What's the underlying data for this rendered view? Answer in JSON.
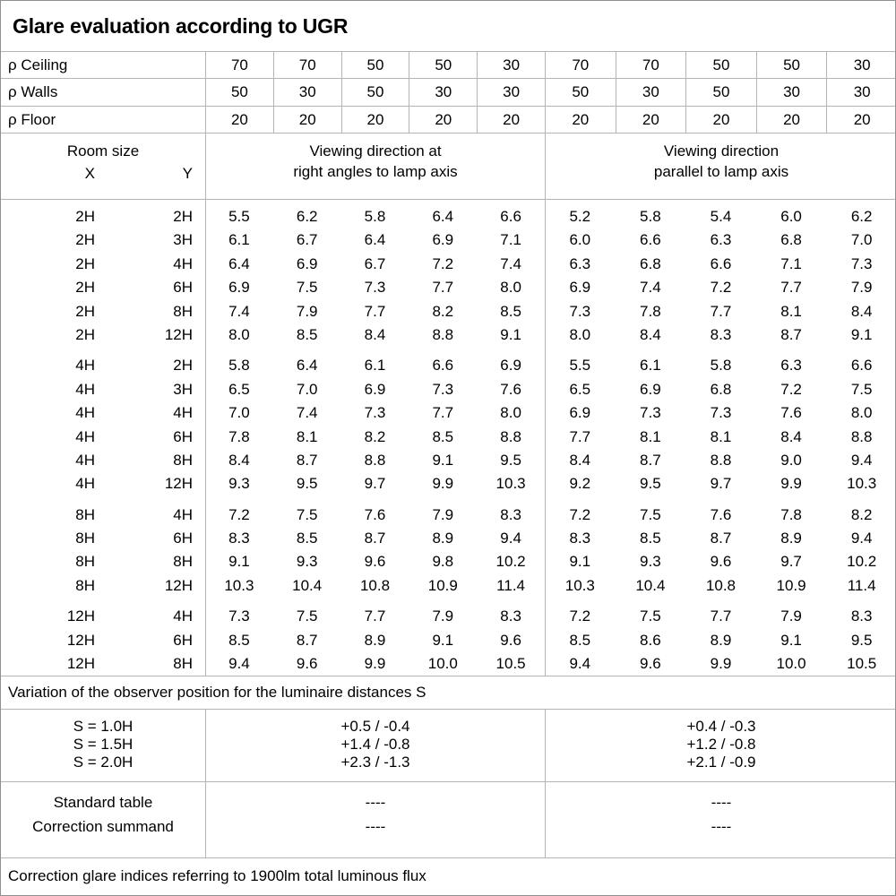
{
  "title": "Glare evaluation according to UGR",
  "colors": {
    "background": "#ffffff",
    "text": "#000000",
    "grid_line": "#b4b4b4",
    "outer_border": "#8f8f8f"
  },
  "reflectance": {
    "rows": [
      {
        "label": "ρ Ceiling",
        "values": [
          "70",
          "70",
          "50",
          "50",
          "30",
          "70",
          "70",
          "50",
          "50",
          "30"
        ]
      },
      {
        "label": "ρ Walls",
        "values": [
          "50",
          "30",
          "50",
          "30",
          "30",
          "50",
          "30",
          "50",
          "30",
          "30"
        ]
      },
      {
        "label": "ρ Floor",
        "values": [
          "20",
          "20",
          "20",
          "20",
          "20",
          "20",
          "20",
          "20",
          "20",
          "20"
        ]
      }
    ]
  },
  "header": {
    "room_size_label": "Room size",
    "x_label": "X",
    "y_label": "Y",
    "right_angles_lines": [
      "Viewing direction at",
      "right angles to lamp axis"
    ],
    "parallel_lines": [
      "Viewing direction",
      "parallel to lamp axis"
    ]
  },
  "table": {
    "groups": [
      {
        "rows": [
          {
            "x": "2H",
            "y": "2H",
            "right_angles": [
              "5.5",
              "6.2",
              "5.8",
              "6.4",
              "6.6"
            ],
            "parallel": [
              "5.2",
              "5.8",
              "5.4",
              "6.0",
              "6.2"
            ]
          },
          {
            "x": "2H",
            "y": "3H",
            "right_angles": [
              "6.1",
              "6.7",
              "6.4",
              "6.9",
              "7.1"
            ],
            "parallel": [
              "6.0",
              "6.6",
              "6.3",
              "6.8",
              "7.0"
            ]
          },
          {
            "x": "2H",
            "y": "4H",
            "right_angles": [
              "6.4",
              "6.9",
              "6.7",
              "7.2",
              "7.4"
            ],
            "parallel": [
              "6.3",
              "6.8",
              "6.6",
              "7.1",
              "7.3"
            ]
          },
          {
            "x": "2H",
            "y": "6H",
            "right_angles": [
              "6.9",
              "7.5",
              "7.3",
              "7.7",
              "8.0"
            ],
            "parallel": [
              "6.9",
              "7.4",
              "7.2",
              "7.7",
              "7.9"
            ]
          },
          {
            "x": "2H",
            "y": "8H",
            "right_angles": [
              "7.4",
              "7.9",
              "7.7",
              "8.2",
              "8.5"
            ],
            "parallel": [
              "7.3",
              "7.8",
              "7.7",
              "8.1",
              "8.4"
            ]
          },
          {
            "x": "2H",
            "y": "12H",
            "right_angles": [
              "8.0",
              "8.5",
              "8.4",
              "8.8",
              "9.1"
            ],
            "parallel": [
              "8.0",
              "8.4",
              "8.3",
              "8.7",
              "9.1"
            ]
          }
        ]
      },
      {
        "rows": [
          {
            "x": "4H",
            "y": "2H",
            "right_angles": [
              "5.8",
              "6.4",
              "6.1",
              "6.6",
              "6.9"
            ],
            "parallel": [
              "5.5",
              "6.1",
              "5.8",
              "6.3",
              "6.6"
            ]
          },
          {
            "x": "4H",
            "y": "3H",
            "right_angles": [
              "6.5",
              "7.0",
              "6.9",
              "7.3",
              "7.6"
            ],
            "parallel": [
              "6.5",
              "6.9",
              "6.8",
              "7.2",
              "7.5"
            ]
          },
          {
            "x": "4H",
            "y": "4H",
            "right_angles": [
              "7.0",
              "7.4",
              "7.3",
              "7.7",
              "8.0"
            ],
            "parallel": [
              "6.9",
              "7.3",
              "7.3",
              "7.6",
              "8.0"
            ]
          },
          {
            "x": "4H",
            "y": "6H",
            "right_angles": [
              "7.8",
              "8.1",
              "8.2",
              "8.5",
              "8.8"
            ],
            "parallel": [
              "7.7",
              "8.1",
              "8.1",
              "8.4",
              "8.8"
            ]
          },
          {
            "x": "4H",
            "y": "8H",
            "right_angles": [
              "8.4",
              "8.7",
              "8.8",
              "9.1",
              "9.5"
            ],
            "parallel": [
              "8.4",
              "8.7",
              "8.8",
              "9.0",
              "9.4"
            ]
          },
          {
            "x": "4H",
            "y": "12H",
            "right_angles": [
              "9.3",
              "9.5",
              "9.7",
              "9.9",
              "10.3"
            ],
            "parallel": [
              "9.2",
              "9.5",
              "9.7",
              "9.9",
              "10.3"
            ]
          }
        ]
      },
      {
        "rows": [
          {
            "x": "8H",
            "y": "4H",
            "right_angles": [
              "7.2",
              "7.5",
              "7.6",
              "7.9",
              "8.3"
            ],
            "parallel": [
              "7.2",
              "7.5",
              "7.6",
              "7.8",
              "8.2"
            ]
          },
          {
            "x": "8H",
            "y": "6H",
            "right_angles": [
              "8.3",
              "8.5",
              "8.7",
              "8.9",
              "9.4"
            ],
            "parallel": [
              "8.3",
              "8.5",
              "8.7",
              "8.9",
              "9.4"
            ]
          },
          {
            "x": "8H",
            "y": "8H",
            "right_angles": [
              "9.1",
              "9.3",
              "9.6",
              "9.8",
              "10.2"
            ],
            "parallel": [
              "9.1",
              "9.3",
              "9.6",
              "9.7",
              "10.2"
            ]
          },
          {
            "x": "8H",
            "y": "12H",
            "right_angles": [
              "10.3",
              "10.4",
              "10.8",
              "10.9",
              "11.4"
            ],
            "parallel": [
              "10.3",
              "10.4",
              "10.8",
              "10.9",
              "11.4"
            ]
          }
        ]
      },
      {
        "rows": [
          {
            "x": "12H",
            "y": "4H",
            "right_angles": [
              "7.3",
              "7.5",
              "7.7",
              "7.9",
              "8.3"
            ],
            "parallel": [
              "7.2",
              "7.5",
              "7.7",
              "7.9",
              "8.3"
            ]
          },
          {
            "x": "12H",
            "y": "6H",
            "right_angles": [
              "8.5",
              "8.7",
              "8.9",
              "9.1",
              "9.6"
            ],
            "parallel": [
              "8.5",
              "8.6",
              "8.9",
              "9.1",
              "9.5"
            ]
          },
          {
            "x": "12H",
            "y": "8H",
            "right_angles": [
              "9.4",
              "9.6",
              "9.9",
              "10.0",
              "10.5"
            ],
            "parallel": [
              "9.4",
              "9.6",
              "9.9",
              "10.0",
              "10.5"
            ]
          }
        ]
      }
    ]
  },
  "variation": {
    "note": "Variation of the observer position for the luminaire distances S",
    "rows": [
      {
        "label": "S = 1.0H",
        "right_angles": "+0.5 / -0.4",
        "parallel": "+0.4 / -0.3"
      },
      {
        "label": "S = 1.5H",
        "right_angles": "+1.4 / -0.8",
        "parallel": "+1.2 / -0.8"
      },
      {
        "label": "S = 2.0H",
        "right_angles": "+2.3 / -1.3",
        "parallel": "+2.1 / -0.9"
      }
    ]
  },
  "correction": {
    "rows": [
      {
        "label": "Standard table",
        "right_angles": "----",
        "parallel": "----"
      },
      {
        "label": "Correction summand",
        "right_angles": "----",
        "parallel": "----"
      }
    ]
  },
  "footer_note": "Correction glare indices referring to 1900lm total luminous flux"
}
